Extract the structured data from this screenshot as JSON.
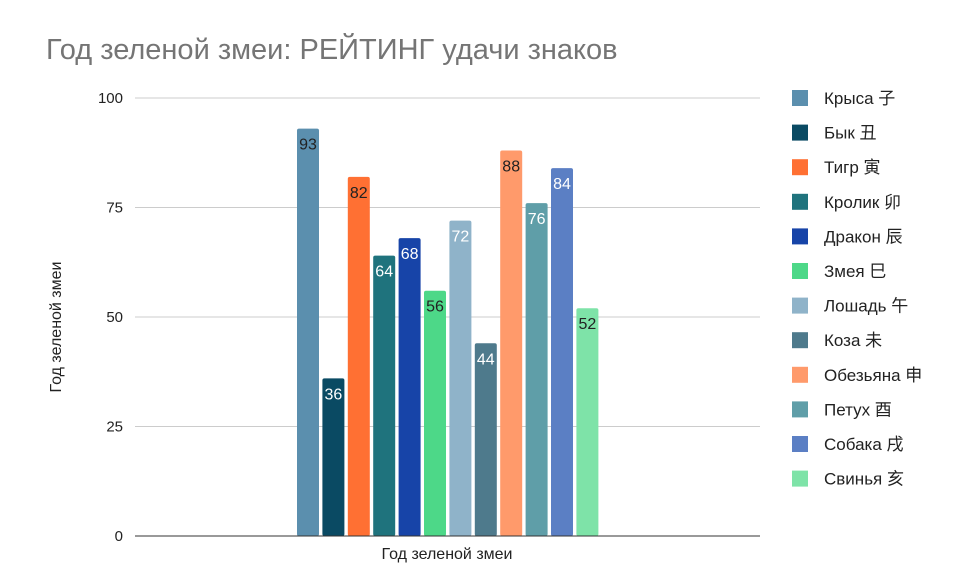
{
  "chart_data": {
    "type": "bar",
    "title": "Год зеленой змеи: РЕЙТИНГ удачи знаков",
    "xlabel": "Год зеленой змеи",
    "ylabel": "Год зеленой змеи",
    "categories": [
      "Год зеленой змеи"
    ],
    "ylim": [
      0,
      100
    ],
    "yticks": [
      0,
      25,
      50,
      75,
      100
    ],
    "grid": true,
    "legend_position": "right",
    "series": [
      {
        "name": "Крыса 子",
        "values": [
          93
        ],
        "color": "#5b8fae"
      },
      {
        "name": "Бык 丑",
        "values": [
          36
        ],
        "color": "#0a4a63"
      },
      {
        "name": "Тигр 寅",
        "values": [
          82
        ],
        "color": "#ff7033"
      },
      {
        "name": "Кролик 卯",
        "values": [
          64
        ],
        "color": "#1f737d"
      },
      {
        "name": "Дракон 辰",
        "values": [
          68
        ],
        "color": "#1744a8"
      },
      {
        "name": "Змея 巳",
        "values": [
          56
        ],
        "color": "#4dd888"
      },
      {
        "name": "Лошадь 午",
        "values": [
          72
        ],
        "color": "#8fb3c9"
      },
      {
        "name": "Коза 未",
        "values": [
          44
        ],
        "color": "#4e7a8c"
      },
      {
        "name": "Обезьяна 申",
        "values": [
          88
        ],
        "color": "#ff9a6b"
      },
      {
        "name": "Петух 酉",
        "values": [
          76
        ],
        "color": "#5f9ea8"
      },
      {
        "name": "Собака 戌",
        "values": [
          84
        ],
        "color": "#5b7fc4"
      },
      {
        "name": "Свинья 亥",
        "values": [
          52
        ],
        "color": "#7ee3a8"
      }
    ]
  }
}
